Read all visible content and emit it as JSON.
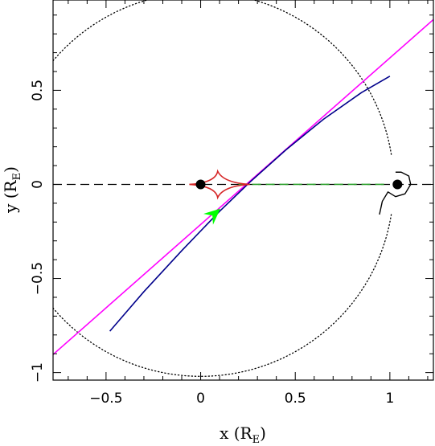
{
  "chart_data": {
    "type": "line",
    "xlabel": {
      "main": "x (R",
      "sub": "E",
      "close": ")"
    },
    "ylabel": {
      "main": "y (R",
      "sub": "E",
      "close": ")"
    },
    "xlim": [
      -0.78,
      1.23
    ],
    "ylim": [
      -1.04,
      0.98
    ],
    "xticks": [
      {
        "value": -0.5,
        "label": "−0.5"
      },
      {
        "value": 0,
        "label": "0"
      },
      {
        "value": 0.5,
        "label": "0.5"
      },
      {
        "value": 1,
        "label": "1"
      }
    ],
    "yticks": [
      {
        "value": -1,
        "label": "−1"
      },
      {
        "value": -0.5,
        "label": "−0.5"
      },
      {
        "value": 0,
        "label": "0"
      },
      {
        "value": 0.5,
        "label": "0.5"
      }
    ],
    "series": [
      {
        "kind": "dashed-axis",
        "color": "#000000",
        "x": [
          -0.78,
          1.23
        ],
        "y": [
          0,
          0
        ]
      },
      {
        "kind": "dashed-segment",
        "color": "#2ca02c",
        "x": [
          0.2,
          0.97
        ],
        "y": [
          0,
          0
        ]
      },
      {
        "kind": "solid",
        "color": "#ff00ff",
        "x": [
          -0.78,
          1.23
        ],
        "y": [
          -0.904,
          0.876
        ]
      },
      {
        "kind": "solid",
        "color": "#00008b",
        "x": [
          -0.48,
          -0.3,
          -0.1,
          0.1,
          0.26,
          0.45,
          0.65,
          0.85,
          1.0
        ],
        "y": [
          -0.78,
          -0.57,
          -0.352,
          -0.143,
          0.012,
          0.183,
          0.347,
          0.488,
          0.575
        ]
      }
    ],
    "caustic": {
      "color": "#d62728",
      "cusps": {
        "x": [
          -0.06,
          0.09,
          0.26,
          0.09
        ],
        "y": [
          0,
          0.07,
          0,
          -0.07
        ]
      }
    },
    "lenses": [
      {
        "x": 0,
        "y": 0
      },
      {
        "x": 1.04,
        "y": 0
      }
    ],
    "critical_curve": {
      "circle_center": [
        0,
        0
      ],
      "circle_radius": 1.02,
      "lobe": {
        "x": [
          1.03,
          1.06,
          1.1,
          1.11,
          1.08,
          1.03,
          0.99,
          0.96,
          0.945
        ],
        "y": [
          0.065,
          0.065,
          0.045,
          0.0,
          -0.05,
          -0.065,
          -0.04,
          -0.09,
          -0.16
        ]
      }
    },
    "arrow": {
      "color": "#00ff00",
      "x": 0.08,
      "y": -0.15,
      "dx": 0.04,
      "dy": 0.035
    }
  }
}
